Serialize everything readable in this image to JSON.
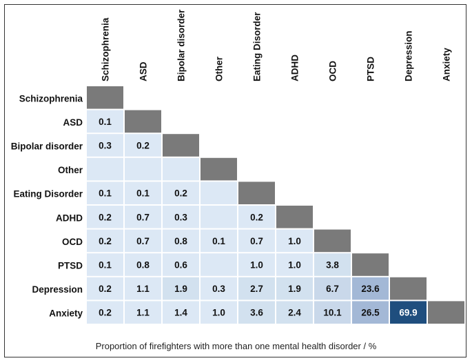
{
  "caption": "Proportion of firefighters with more than one mental health disorder / %",
  "colors": {
    "diagonal": "#7a7a7a",
    "lowest": "#dce8f5",
    "low": "#d2e1ef",
    "mid": "#c9d8ea",
    "midhigh": "#a3b8d6",
    "highest": "#1f4e7e",
    "text_dark": "#111111",
    "text_light": "#ffffff"
  },
  "chart_data": {
    "type": "heatmap",
    "title": "",
    "xlabel": "Proportion of firefighters with more than one mental health disorder / %",
    "ylabel": "",
    "categories": [
      "Schizophrenia",
      "ASD",
      "Bipolar disorder",
      "Other",
      "Eating Disorder",
      "ADHD",
      "OCD",
      "PTSD",
      "Depression",
      "Anxiety"
    ],
    "matrix": [
      [
        null,
        null,
        null,
        null,
        null,
        null,
        null,
        null,
        null,
        null
      ],
      [
        0.1,
        null,
        null,
        null,
        null,
        null,
        null,
        null,
        null,
        null
      ],
      [
        0.3,
        0.2,
        null,
        null,
        null,
        null,
        null,
        null,
        null,
        null
      ],
      [
        null,
        null,
        null,
        null,
        null,
        null,
        null,
        null,
        null,
        null
      ],
      [
        0.1,
        0.1,
        0.2,
        null,
        null,
        null,
        null,
        null,
        null,
        null
      ],
      [
        0.2,
        0.7,
        0.3,
        null,
        0.2,
        null,
        null,
        null,
        null,
        null
      ],
      [
        0.2,
        0.7,
        0.8,
        0.1,
        0.7,
        1.0,
        null,
        null,
        null,
        null
      ],
      [
        0.1,
        0.8,
        0.6,
        null,
        1.0,
        1.0,
        3.8,
        null,
        null,
        null
      ],
      [
        0.2,
        1.1,
        1.9,
        0.3,
        2.7,
        1.9,
        6.7,
        23.6,
        null,
        null
      ],
      [
        0.2,
        1.1,
        1.4,
        1.0,
        3.6,
        2.4,
        10.1,
        26.5,
        69.9,
        null
      ]
    ],
    "value_labels": [
      [],
      [
        "0.1"
      ],
      [
        "0.3",
        "0.2"
      ],
      [
        "",
        "",
        ""
      ],
      [
        "0.1",
        "0.1",
        "0.2",
        ""
      ],
      [
        "0.2",
        "0.7",
        "0.3",
        "",
        "0.2"
      ],
      [
        "0.2",
        "0.7",
        "0.8",
        "0.1",
        "0.7",
        "1.0"
      ],
      [
        "0.1",
        "0.8",
        "0.6",
        "",
        "1.0",
        "1.0",
        "3.8"
      ],
      [
        "0.2",
        "1.1",
        "1.9",
        "0.3",
        "2.7",
        "1.9",
        "6.7",
        "23.6"
      ],
      [
        "0.2",
        "1.1",
        "1.4",
        "1.0",
        "3.6",
        "2.4",
        "10.1",
        "26.5",
        "69.9"
      ]
    ],
    "diagonal": "grey"
  }
}
